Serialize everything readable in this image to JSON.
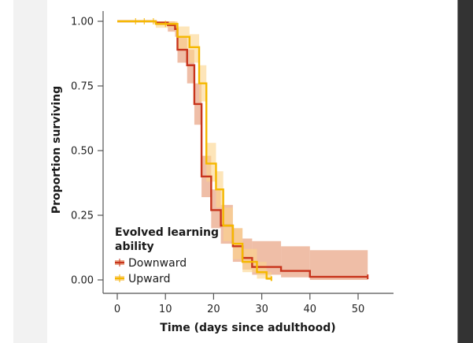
{
  "chart_data": {
    "type": "line",
    "subtype": "kaplan-meier step",
    "xlabel": "Time (days since adulthood)",
    "ylabel": "Proportion surviving",
    "xlim": [
      -3,
      57
    ],
    "ylim": [
      0,
      1
    ],
    "xticks": [
      0,
      10,
      20,
      30,
      40,
      50
    ],
    "xtick_labels": [
      "0",
      "10",
      "20",
      "30",
      "40",
      "50"
    ],
    "yticks": [
      0,
      0.25,
      0.5,
      0.75,
      1.0
    ],
    "ytick_labels": [
      "0.00",
      "0.25",
      "0.50",
      "0.75",
      "1.00"
    ],
    "grid": false,
    "legend": {
      "title_line1": "Evolved learning",
      "title_line2": "ability",
      "placement": "bottom-left",
      "entries": [
        "Downward",
        "Upward"
      ]
    },
    "series": [
      {
        "name": "Downward",
        "color": "#c8341c",
        "band_color": "#e9a88a",
        "steps": [
          {
            "t": 0,
            "s": 1.0,
            "lo": 1.0,
            "hi": 1.0
          },
          {
            "t": 8,
            "s": 0.995,
            "lo": 0.985,
            "hi": 1.0
          },
          {
            "t": 10.5,
            "s": 0.985,
            "lo": 0.96,
            "hi": 1.0
          },
          {
            "t": 12,
            "s": 0.97,
            "lo": 0.94,
            "hi": 0.995
          },
          {
            "t": 12.5,
            "s": 0.89,
            "lo": 0.84,
            "hi": 0.94
          },
          {
            "t": 14.5,
            "s": 0.83,
            "lo": 0.76,
            "hi": 0.89
          },
          {
            "t": 16,
            "s": 0.68,
            "lo": 0.6,
            "hi": 0.76
          },
          {
            "t": 17.5,
            "s": 0.4,
            "lo": 0.32,
            "hi": 0.48
          },
          {
            "t": 19.5,
            "s": 0.27,
            "lo": 0.2,
            "hi": 0.35
          },
          {
            "t": 21.5,
            "s": 0.21,
            "lo": 0.14,
            "hi": 0.29
          },
          {
            "t": 24,
            "s": 0.13,
            "lo": 0.07,
            "hi": 0.2
          },
          {
            "t": 26,
            "s": 0.085,
            "lo": 0.04,
            "hi": 0.16
          },
          {
            "t": 28,
            "s": 0.05,
            "lo": 0.02,
            "hi": 0.15
          },
          {
            "t": 34,
            "s": 0.035,
            "lo": 0.01,
            "hi": 0.13
          },
          {
            "t": 40,
            "s": 0.012,
            "lo": 0.0,
            "hi": 0.115
          },
          {
            "t": 52,
            "s": 0.012,
            "lo": 0.0,
            "hi": 0.115
          }
        ]
      },
      {
        "name": "Upward",
        "color": "#f5b800",
        "band_color": "#fbd48a",
        "censor_times": [
          3.8,
          5.6,
          7.5,
          10
        ],
        "steps": [
          {
            "t": 0,
            "s": 1.0,
            "lo": 1.0,
            "hi": 1.0
          },
          {
            "t": 8,
            "s": 0.99,
            "lo": 0.975,
            "hi": 1.0
          },
          {
            "t": 12.5,
            "s": 0.94,
            "lo": 0.89,
            "hi": 0.98
          },
          {
            "t": 15,
            "s": 0.9,
            "lo": 0.84,
            "hi": 0.95
          },
          {
            "t": 17,
            "s": 0.76,
            "lo": 0.69,
            "hi": 0.83
          },
          {
            "t": 18.5,
            "s": 0.45,
            "lo": 0.38,
            "hi": 0.53
          },
          {
            "t": 20.5,
            "s": 0.35,
            "lo": 0.28,
            "hi": 0.42
          },
          {
            "t": 22,
            "s": 0.21,
            "lo": 0.15,
            "hi": 0.28
          },
          {
            "t": 24,
            "s": 0.14,
            "lo": 0.08,
            "hi": 0.2
          },
          {
            "t": 26,
            "s": 0.07,
            "lo": 0.03,
            "hi": 0.12
          },
          {
            "t": 29,
            "s": 0.03,
            "lo": 0.005,
            "hi": 0.07
          },
          {
            "t": 31,
            "s": 0.005,
            "lo": 0.0,
            "hi": 0.03
          },
          {
            "t": 32,
            "s": 0.005,
            "lo": 0.0,
            "hi": 0.03
          }
        ]
      }
    ]
  }
}
